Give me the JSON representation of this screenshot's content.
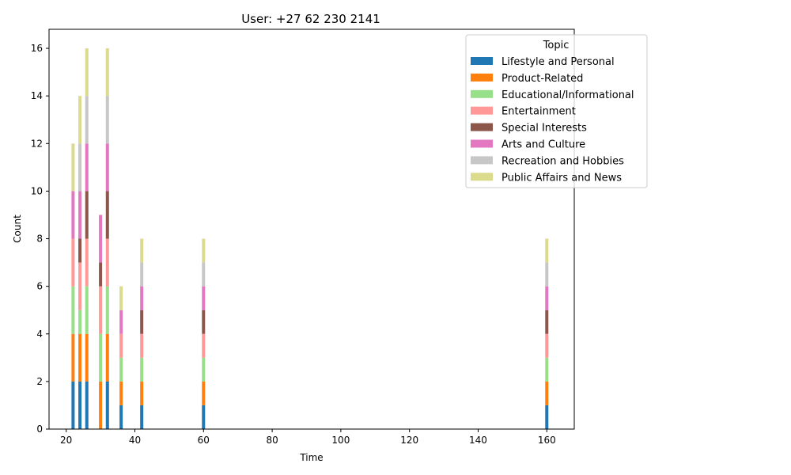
{
  "chart_data": {
    "type": "bar",
    "stacked": true,
    "title": "User: +27 62 230 2141",
    "xlabel": "Time",
    "ylabel": "Count",
    "xlim": [
      15,
      168
    ],
    "ylim": [
      0,
      16.8
    ],
    "xticks": [
      20,
      40,
      60,
      80,
      100,
      120,
      140,
      160
    ],
    "yticks": [
      0,
      2,
      4,
      6,
      8,
      10,
      12,
      14,
      16
    ],
    "grid": false,
    "legend": {
      "title": "Topic",
      "position": "top-right"
    },
    "x": [
      22,
      24,
      26,
      30,
      32,
      36,
      42,
      60,
      160
    ],
    "series": [
      {
        "name": "Lifestyle and Personal",
        "color": "#1f77b4",
        "values": [
          2,
          2,
          2,
          0,
          2,
          1,
          1,
          1,
          1
        ]
      },
      {
        "name": "Product-Related",
        "color": "#ff7f0e",
        "values": [
          2,
          2,
          2,
          2,
          2,
          1,
          1,
          1,
          1
        ]
      },
      {
        "name": "Educational/Informational",
        "color": "#98df8a",
        "values": [
          2,
          1,
          2,
          2,
          2,
          1,
          1,
          1,
          1
        ]
      },
      {
        "name": "Entertainment",
        "color": "#ff9896",
        "values": [
          2,
          2,
          2,
          2,
          2,
          1,
          1,
          1,
          1
        ]
      },
      {
        "name": "Special Interests",
        "color": "#8c564b",
        "values": [
          0,
          1,
          2,
          1,
          2,
          0,
          1,
          1,
          1
        ]
      },
      {
        "name": "Arts and Culture",
        "color": "#e377c2",
        "values": [
          2,
          2,
          2,
          2,
          2,
          1,
          1,
          1,
          1
        ]
      },
      {
        "name": "Recreation and Hobbies",
        "color": "#c7c7c7",
        "values": [
          0,
          2,
          2,
          0,
          2,
          0,
          1,
          1,
          1
        ]
      },
      {
        "name": "Public Affairs and News",
        "color": "#dbdb8d",
        "values": [
          2,
          2,
          2,
          0,
          2,
          1,
          1,
          1,
          1
        ]
      }
    ]
  }
}
